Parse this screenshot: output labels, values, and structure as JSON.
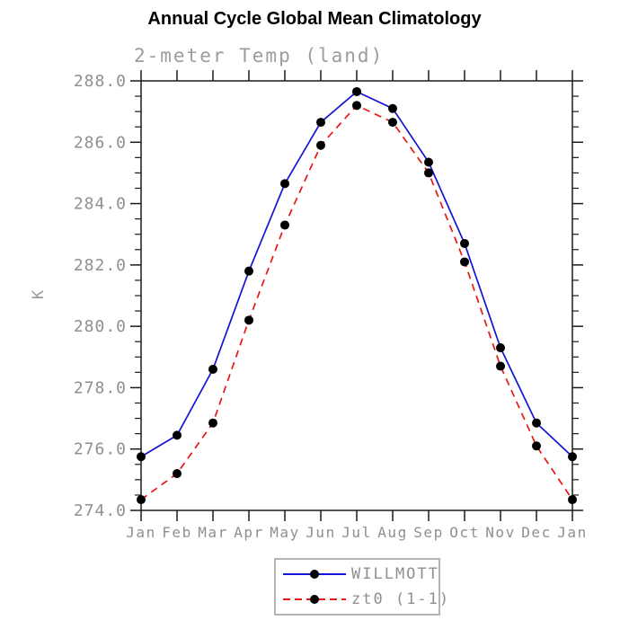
{
  "header": {
    "title": "Annual Cycle Global Mean Climatology"
  },
  "chart_data": {
    "type": "line",
    "title": "Annual Cycle Global Mean Climatology",
    "subtitle": "2-meter Temp (land)",
    "ylabel": "K",
    "xlabel": "",
    "x_categories": [
      "Jan",
      "Feb",
      "Mar",
      "Apr",
      "May",
      "Jun",
      "Jul",
      "Aug",
      "Sep",
      "Oct",
      "Nov",
      "Dec",
      "Jan"
    ],
    "series": [
      {
        "name": "WILLMOTT",
        "line_style": "solid",
        "color": "#1414d2",
        "marker": "circle",
        "marker_color": "#000000",
        "values": [
          275.75,
          276.45,
          278.6,
          281.8,
          284.65,
          286.65,
          287.65,
          287.1,
          285.35,
          282.7,
          279.3,
          276.85,
          275.75
        ]
      },
      {
        "name": "zt0 (1-1)",
        "line_style": "dashed",
        "color": "#e81616",
        "marker": "circle",
        "marker_color": "#000000",
        "values": [
          274.35,
          275.2,
          276.85,
          280.2,
          283.3,
          285.9,
          287.2,
          286.65,
          285.0,
          282.1,
          278.7,
          276.1,
          274.35
        ]
      }
    ],
    "ylim": [
      274.0,
      288.0
    ],
    "ytick_labels": [
      "274.0",
      "276.0",
      "278.0",
      "280.0",
      "282.0",
      "284.0",
      "286.0",
      "288.0"
    ],
    "ytick_major_step": 2.0,
    "ytick_minor_step": 0.5,
    "grid": false,
    "legend_position": "bottom-center"
  },
  "legend": {
    "entries": [
      {
        "label": "WILLMOTT"
      },
      {
        "label": "zt0 (1-1)"
      }
    ]
  },
  "colors": {
    "axis": "#1a1a1a",
    "tick_label_gray": "#8f8f8f",
    "subtitle_gray": "#9c9c9c",
    "legend_border": "#b4b4b4",
    "background": "#ffffff",
    "series_blue": "#1414d2",
    "series_red": "#e81616",
    "marker_black": "#000000"
  }
}
